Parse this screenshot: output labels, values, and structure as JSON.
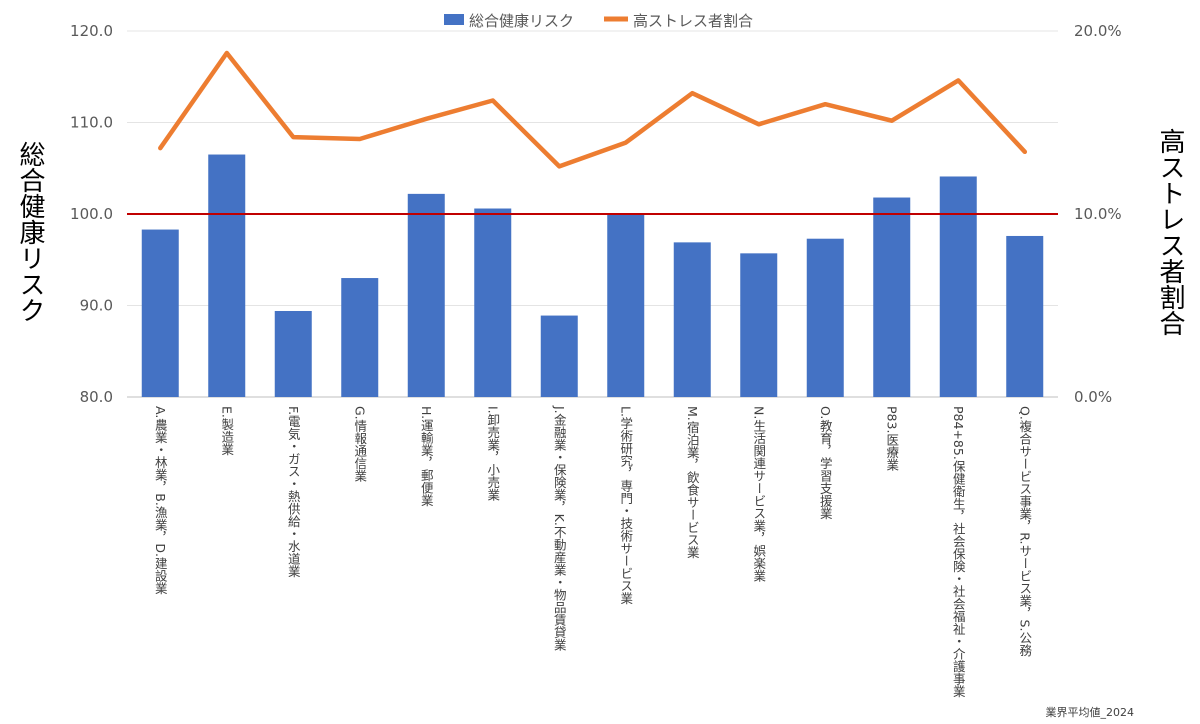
{
  "chart_data": {
    "type": "bar",
    "categories": [
      "A.農業・林業，B.漁業，D.建設業",
      "E.製造業",
      "F.電気・ガス・熱供給・水道業",
      "G.情報通信業",
      "H.運輸業，郵便業",
      "I.卸売業，小売業",
      "J.金融業・保険業，K.不動産業・物品賃貸業",
      "L.学術研究，専門・技術サービス業",
      "M.宿泊業，飲食サービス業",
      "N.生活関連サービス業，娯楽業",
      "O.教育，学習支援業",
      "P83.医療業",
      "P84+85.保健衛生，社会保険・社会福祉・介護事業",
      "Q.複合サービス事業，R.サービス業，S.公務"
    ],
    "series": [
      {
        "name": "総合健康リスク",
        "type": "bar",
        "axis": "left",
        "color": "#4472C4",
        "values": [
          98.3,
          106.5,
          89.4,
          93.0,
          102.2,
          100.6,
          88.9,
          100.0,
          96.9,
          95.7,
          97.3,
          101.8,
          104.1,
          97.6
        ]
      },
      {
        "name": "高ストレス者割合",
        "type": "line",
        "axis": "right",
        "color": "#ED7D31",
        "values": [
          13.6,
          18.8,
          14.2,
          14.1,
          15.2,
          16.2,
          12.6,
          13.9,
          16.6,
          14.9,
          16.0,
          15.1,
          17.3,
          13.4
        ]
      }
    ],
    "reference_line": {
      "axis": "left",
      "value": 100.0,
      "color": "#C00000"
    },
    "left_axis": {
      "label": "総合健康リスク",
      "ylim": [
        80,
        120
      ],
      "ticks": [
        "80.0",
        "90.0",
        "100.0",
        "110.0",
        "120.0"
      ]
    },
    "right_axis": {
      "label": "高ストレス者割合",
      "ylim": [
        0,
        20
      ],
      "ticks": [
        "0.0%",
        "10.0%",
        "20.0%"
      ]
    },
    "grid": true,
    "legend": "top-center",
    "footnote": "業界平均値_2024"
  }
}
